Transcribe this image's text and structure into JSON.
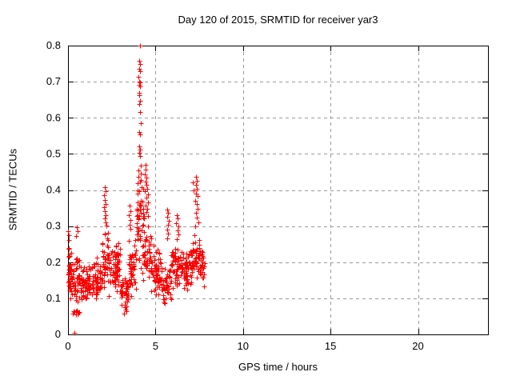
{
  "chart_data": {
    "type": "scatter",
    "title": "Day 120 of 2015, SRMTID for receiver yar3",
    "xlabel": "GPS time / hours",
    "ylabel": "SRMTID / TECUs",
    "xlim": [
      0,
      24
    ],
    "ylim": [
      0,
      0.8
    ],
    "xticks": [
      0,
      5,
      10,
      15,
      20
    ],
    "yticks": [
      0,
      0.1,
      0.2,
      0.3,
      0.4,
      0.5,
      0.6,
      0.7,
      0.8
    ],
    "grid": {
      "show": true,
      "style": "dashed",
      "color": "#9a9a9a"
    },
    "legend": "none",
    "background": "#ffffff",
    "axis_color": "#000000",
    "marker": {
      "shape": "plus",
      "color": "#ff0000",
      "size": 7
    },
    "series": [
      {
        "name": "SRMTID",
        "points": [
          [
            4.1,
            0.8
          ],
          [
            4.07,
            0.757
          ],
          [
            4.12,
            0.748
          ],
          [
            4.05,
            0.735
          ],
          [
            4.1,
            0.728
          ],
          [
            4.04,
            0.713
          ],
          [
            4.08,
            0.7
          ],
          [
            4.13,
            0.697
          ],
          [
            4.06,
            0.691
          ],
          [
            4.11,
            0.686
          ],
          [
            4.05,
            0.67
          ],
          [
            4.09,
            0.663
          ],
          [
            4.12,
            0.646
          ],
          [
            4.07,
            0.639
          ],
          [
            4.1,
            0.616
          ],
          [
            4.14,
            0.586
          ],
          [
            4.06,
            0.561
          ],
          [
            4.11,
            0.553
          ],
          [
            4.08,
            0.521
          ],
          [
            4.13,
            0.513
          ],
          [
            4.05,
            0.504
          ],
          [
            4.1,
            0.494
          ],
          [
            4.15,
            0.468
          ],
          [
            4.03,
            0.455
          ],
          [
            4.18,
            0.446
          ],
          [
            4.01,
            0.437
          ],
          [
            4.16,
            0.428
          ],
          [
            3.98,
            0.418
          ],
          [
            4.2,
            0.408
          ],
          [
            3.96,
            0.398
          ],
          [
            4.42,
            0.47
          ],
          [
            4.45,
            0.456
          ],
          [
            4.4,
            0.444
          ],
          [
            4.5,
            0.434
          ],
          [
            4.44,
            0.424
          ],
          [
            4.47,
            0.414
          ],
          [
            4.52,
            0.404
          ],
          [
            4.41,
            0.396
          ],
          [
            4.55,
            0.388
          ],
          [
            4.48,
            0.378
          ],
          [
            4.58,
            0.366
          ],
          [
            4.44,
            0.356
          ],
          [
            4.53,
            0.348
          ],
          [
            4.46,
            0.338
          ],
          [
            4.56,
            0.328
          ],
          [
            2.1,
            0.408
          ],
          [
            2.14,
            0.396
          ],
          [
            2.07,
            0.386
          ],
          [
            2.12,
            0.373
          ],
          [
            2.17,
            0.362
          ],
          [
            2.05,
            0.352
          ],
          [
            2.1,
            0.342
          ],
          [
            2.15,
            0.331
          ],
          [
            2.08,
            0.321
          ],
          [
            2.13,
            0.311
          ],
          [
            2.18,
            0.301
          ],
          [
            3.52,
            0.356
          ],
          [
            3.55,
            0.341
          ],
          [
            3.49,
            0.33
          ],
          [
            3.56,
            0.317
          ],
          [
            3.51,
            0.304
          ],
          [
            3.58,
            0.293
          ],
          [
            5.68,
            0.345
          ],
          [
            5.72,
            0.336
          ],
          [
            5.66,
            0.326
          ],
          [
            5.74,
            0.314
          ],
          [
            5.7,
            0.303
          ],
          [
            5.69,
            0.291
          ],
          [
            5.73,
            0.279
          ],
          [
            5.67,
            0.266
          ],
          [
            6.22,
            0.331
          ],
          [
            6.28,
            0.321
          ],
          [
            6.18,
            0.309
          ],
          [
            6.3,
            0.299
          ],
          [
            6.25,
            0.289
          ],
          [
            6.33,
            0.276
          ],
          [
            6.2,
            0.264
          ],
          [
            7.32,
            0.436
          ],
          [
            7.36,
            0.426
          ],
          [
            7.3,
            0.414
          ],
          [
            7.38,
            0.403
          ],
          [
            7.33,
            0.391
          ],
          [
            7.4,
            0.384
          ],
          [
            7.28,
            0.371
          ],
          [
            7.35,
            0.361
          ],
          [
            7.42,
            0.349
          ],
          [
            7.31,
            0.337
          ],
          [
            7.37,
            0.324
          ],
          [
            7.44,
            0.311
          ],
          [
            7.29,
            0.299
          ],
          [
            7.15,
            0.42
          ],
          [
            7.18,
            0.398
          ],
          [
            0.02,
            0.285
          ],
          [
            0.04,
            0.262
          ],
          [
            0.03,
            0.24
          ],
          [
            0.05,
            0.215
          ],
          [
            0.5,
            0.298
          ],
          [
            0.55,
            0.286
          ],
          [
            0.47,
            0.273
          ],
          [
            0.38,
            0.004
          ]
        ],
        "density_bands": [
          {
            "x0": 0.0,
            "x1": 0.15,
            "ymin": 0.07,
            "ymax": 0.28,
            "n": 22
          },
          {
            "x0": 0.1,
            "x1": 0.7,
            "ymin": 0.09,
            "ymax": 0.24,
            "n": 65
          },
          {
            "x0": 0.25,
            "x1": 0.7,
            "ymin": 0.04,
            "ymax": 0.1,
            "n": 12
          },
          {
            "x0": 0.7,
            "x1": 1.3,
            "ymin": 0.08,
            "ymax": 0.2,
            "n": 60
          },
          {
            "x0": 1.3,
            "x1": 1.95,
            "ymin": 0.09,
            "ymax": 0.22,
            "n": 60
          },
          {
            "x0": 1.95,
            "x1": 2.35,
            "ymin": 0.12,
            "ymax": 0.3,
            "n": 45
          },
          {
            "x0": 2.35,
            "x1": 3.0,
            "ymin": 0.1,
            "ymax": 0.26,
            "n": 65
          },
          {
            "x0": 3.0,
            "x1": 3.45,
            "ymin": 0.05,
            "ymax": 0.16,
            "n": 48
          },
          {
            "x0": 3.45,
            "x1": 3.9,
            "ymin": 0.1,
            "ymax": 0.28,
            "n": 48
          },
          {
            "x0": 3.9,
            "x1": 4.35,
            "ymin": 0.14,
            "ymax": 0.44,
            "n": 55
          },
          {
            "x0": 4.35,
            "x1": 4.75,
            "ymin": 0.13,
            "ymax": 0.33,
            "n": 40
          },
          {
            "x0": 4.75,
            "x1": 5.35,
            "ymin": 0.1,
            "ymax": 0.25,
            "n": 60
          },
          {
            "x0": 5.35,
            "x1": 5.9,
            "ymin": 0.08,
            "ymax": 0.19,
            "n": 48
          },
          {
            "x0": 5.9,
            "x1": 6.55,
            "ymin": 0.12,
            "ymax": 0.26,
            "n": 58
          },
          {
            "x0": 6.55,
            "x1": 7.1,
            "ymin": 0.12,
            "ymax": 0.24,
            "n": 52
          },
          {
            "x0": 7.1,
            "x1": 7.55,
            "ymin": 0.13,
            "ymax": 0.3,
            "n": 42
          },
          {
            "x0": 7.55,
            "x1": 7.8,
            "ymin": 0.13,
            "ymax": 0.26,
            "n": 26
          }
        ]
      }
    ]
  }
}
